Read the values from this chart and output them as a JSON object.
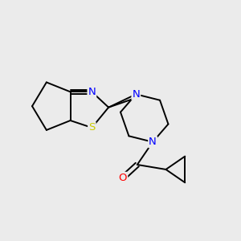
{
  "bg_color": "#ebebeb",
  "atom_colors": {
    "N": "#0000ff",
    "S": "#cccc00",
    "O": "#ff0000",
    "C": "#000000"
  },
  "bond_color": "#000000",
  "bond_width": 1.4,
  "font_size_atom": 9.5,
  "xlim": [
    0,
    10
  ],
  "ylim": [
    0,
    10
  ]
}
